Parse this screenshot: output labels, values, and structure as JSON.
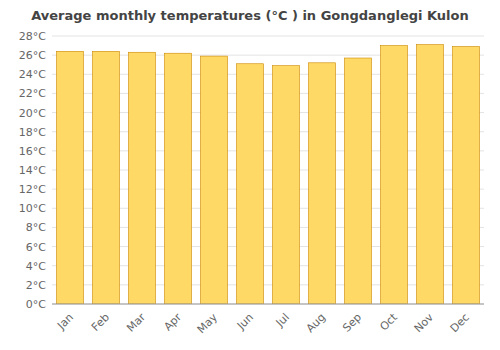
{
  "chart_data": {
    "type": "bar",
    "title": "Average monthly temperatures (°C ) in Gongdanglegi Kulon",
    "categories": [
      "Jan",
      "Feb",
      "Mar",
      "Apr",
      "May",
      "Jun",
      "Jul",
      "Aug",
      "Sep",
      "Oct",
      "Nov",
      "Dec"
    ],
    "values": [
      26.4,
      26.4,
      26.3,
      26.2,
      25.9,
      25.1,
      24.9,
      25.2,
      25.7,
      27.0,
      27.1,
      26.9
    ],
    "color": "#FFD966",
    "ylim": [
      0,
      28
    ],
    "yticks": [
      {
        "value": 0,
        "label": "0°C"
      },
      {
        "value": 2,
        "label": "2°C"
      },
      {
        "value": 4,
        "label": "4°C"
      },
      {
        "value": 6,
        "label": "6°C"
      },
      {
        "value": 8,
        "label": "8°C"
      },
      {
        "value": 10,
        "label": "10°C"
      },
      {
        "value": 12,
        "label": "12°C"
      },
      {
        "value": 14,
        "label": "14°C"
      },
      {
        "value": 16,
        "label": "16°C"
      },
      {
        "value": 18,
        "label": "18°C"
      },
      {
        "value": 20,
        "label": "20°C"
      },
      {
        "value": 22,
        "label": "22°C"
      },
      {
        "value": 24,
        "label": "24°C"
      },
      {
        "value": 26,
        "label": "26°C"
      },
      {
        "value": 28,
        "label": "28°C"
      }
    ],
    "grid": true
  }
}
